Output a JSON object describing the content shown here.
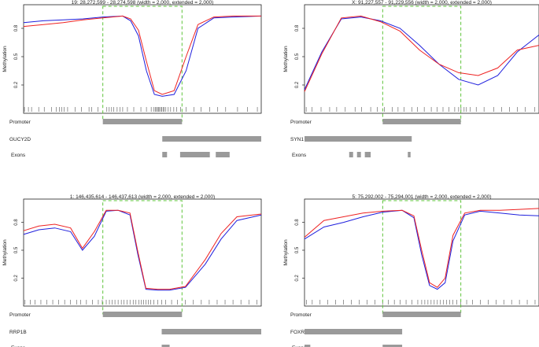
{
  "chart_data": [
    {
      "type": "line",
      "title": "19: 28,272,599 - 28,274,598 (width = 2,000, extended = 2,000)",
      "ylabel": "Methylation",
      "yticks": [
        "0.2",
        "0.5",
        "0.8"
      ],
      "ylim": [
        0,
        1
      ],
      "xlim": [
        28270599,
        28276598
      ],
      "region": [
        28272599,
        28274598
      ],
      "series": [
        {
          "color": "#1f1fdd",
          "x": [
            28270599,
            28271100,
            28271600,
            28272100,
            28272600,
            28273100,
            28273300,
            28273500,
            28273700,
            28273900,
            28274100,
            28274400,
            28274700,
            28275000,
            28275400,
            28275900,
            28276598
          ],
          "y": [
            0.86,
            0.88,
            0.89,
            0.9,
            0.92,
            0.93,
            0.88,
            0.72,
            0.35,
            0.1,
            0.08,
            0.1,
            0.35,
            0.8,
            0.91,
            0.92,
            0.93
          ]
        },
        {
          "color": "#ee2222",
          "x": [
            28270599,
            28271100,
            28271600,
            28272100,
            28272600,
            28273100,
            28273300,
            28273500,
            28273700,
            28273900,
            28274100,
            28274400,
            28274700,
            28275000,
            28275400,
            28275900,
            28276598
          ],
          "y": [
            0.82,
            0.84,
            0.86,
            0.89,
            0.91,
            0.93,
            0.9,
            0.78,
            0.45,
            0.14,
            0.1,
            0.14,
            0.5,
            0.84,
            0.92,
            0.93,
            0.93
          ]
        }
      ],
      "cpg_positions": [
        28270620,
        28270720,
        28270800,
        28270980,
        28271120,
        28271300,
        28271420,
        28271500,
        28271560,
        28271620,
        28271710,
        28271900,
        28272060,
        28272250,
        28272320,
        28272480,
        28272700,
        28272760,
        28272820,
        28272870,
        28272960,
        28273030,
        28273100,
        28273220,
        28273380,
        28273560,
        28273700,
        28273820,
        28273880,
        28273920,
        28273950,
        28273980,
        28274000,
        28274030,
        28274060,
        28274090,
        28274120,
        28274150,
        28274190,
        28274250,
        28274310,
        28274390,
        28274460,
        28274560,
        28274700,
        28274900,
        28275080,
        28275300,
        28275500,
        28275700,
        28276000,
        28276250,
        28276500
      ],
      "tracks": [
        {
          "label": "Promoter",
          "bars": [
            [
              28272599,
              28274598
            ]
          ]
        },
        {
          "label": "GUCY2D",
          "bars": [
            [
              28274100,
              28276598
            ]
          ]
        },
        {
          "label": "Exons",
          "bars": [
            [
              28274100,
              28274220
            ],
            [
              28274550,
              28275300
            ],
            [
              28275450,
              28275800
            ]
          ]
        }
      ]
    },
    {
      "type": "line",
      "title": "X: 91,227,557 - 91,229,556 (width = 2,000, extended = 2,000)",
      "ylabel": "Methylation",
      "yticks": [
        "0.2",
        "0.5",
        "0.8"
      ],
      "ylim": [
        0,
        1
      ],
      "xlim": [
        91225557,
        91231556
      ],
      "region": [
        91227557,
        91229556
      ],
      "series": [
        {
          "color": "#1f1fdd",
          "x": [
            91225557,
            91226000,
            91226500,
            91227000,
            91227500,
            91228000,
            91228500,
            91229000,
            91229500,
            91230000,
            91230500,
            91231000,
            91231556
          ],
          "y": [
            0.15,
            0.55,
            0.9,
            0.92,
            0.88,
            0.8,
            0.62,
            0.42,
            0.26,
            0.2,
            0.3,
            0.55,
            0.73
          ]
        },
        {
          "color": "#ee2222",
          "x": [
            91225557,
            91226000,
            91226500,
            91227000,
            91227500,
            91228000,
            91228500,
            91229000,
            91229500,
            91230000,
            91230500,
            91231000,
            91231556
          ],
          "y": [
            0.13,
            0.53,
            0.91,
            0.93,
            0.87,
            0.77,
            0.57,
            0.42,
            0.33,
            0.3,
            0.38,
            0.57,
            0.62
          ]
        }
      ],
      "cpg_positions": [
        91225600,
        91225750,
        91225980,
        91226200,
        91226380,
        91226600,
        91226850,
        91227020,
        91227250,
        91227420,
        91227600,
        91227800,
        91227950,
        91228100,
        91228300,
        91228450,
        91228620,
        91228800,
        91228950,
        91229100,
        91229250,
        91229400,
        91229500,
        91229560,
        91229640,
        91229700,
        91229800,
        91229950,
        91230150,
        91230400,
        91230600,
        91230800,
        91231000,
        91231200,
        91231450
      ],
      "tracks": [
        {
          "label": "Promoter",
          "bars": [
            [
              91227557,
              91229556
            ]
          ]
        },
        {
          "label": "SYN1",
          "bars": [
            [
              91225557,
              91228300
            ]
          ]
        },
        {
          "label": "Exons",
          "bars": [
            [
              91226700,
              91226800
            ],
            [
              91226900,
              91227000
            ],
            [
              91227100,
              91227250
            ],
            [
              91228200,
              91228270
            ]
          ]
        }
      ]
    },
    {
      "type": "line",
      "title": "1: 146,435,614 - 146,437,613 (width = 2,000, extended = 2,000)",
      "ylabel": "Methylation",
      "yticks": [
        "0.2",
        "0.5",
        "0.8"
      ],
      "ylim": [
        0,
        1
      ],
      "xlim": [
        146433614,
        146439613
      ],
      "region": [
        146435614,
        146437613
      ],
      "series": [
        {
          "color": "#1f1fdd",
          "x": [
            146433614,
            146434000,
            146434400,
            146434800,
            146435100,
            146435400,
            146435700,
            146436000,
            146436300,
            146436500,
            146436700,
            146437000,
            146437300,
            146437700,
            146438200,
            146438600,
            146439000,
            146439613
          ],
          "y": [
            0.67,
            0.72,
            0.74,
            0.7,
            0.5,
            0.65,
            0.92,
            0.93,
            0.88,
            0.45,
            0.08,
            0.07,
            0.07,
            0.1,
            0.35,
            0.62,
            0.82,
            0.88
          ]
        },
        {
          "color": "#ee2222",
          "x": [
            146433614,
            146434000,
            146434400,
            146434800,
            146435100,
            146435400,
            146435700,
            146436000,
            146436300,
            146436500,
            146436700,
            146437000,
            146437300,
            146437700,
            146438200,
            146438600,
            146439000,
            146439613
          ],
          "y": [
            0.71,
            0.76,
            0.78,
            0.74,
            0.52,
            0.7,
            0.93,
            0.93,
            0.9,
            0.48,
            0.09,
            0.08,
            0.08,
            0.11,
            0.4,
            0.68,
            0.86,
            0.89
          ]
        }
      ],
      "cpg_positions": [
        146433650,
        146433780,
        146433900,
        146434050,
        146434200,
        146434350,
        146434500,
        146434650,
        146434800,
        146434950,
        146435050,
        146435200,
        146435350,
        146435500,
        146435600,
        146435700,
        146435780,
        146435850,
        146435920,
        146436000,
        146436080,
        146436150,
        146436230,
        146436300,
        146436380,
        146436450,
        146436520,
        146436580,
        146436640,
        146436700,
        146436760,
        146436820,
        146436900,
        146437000,
        146437100,
        146437200,
        146437350,
        146437500,
        146437700,
        146437900,
        146438100,
        146438300,
        146438500,
        146438700,
        146438900,
        146439100,
        146439300,
        146439500
      ],
      "tracks": [
        {
          "label": "Promoter",
          "bars": [
            [
              146435614,
              146437613
            ]
          ]
        },
        {
          "label": "RRP1B",
          "bars": [
            [
              146437100,
              146439613
            ]
          ]
        },
        {
          "label": "Exons",
          "bars": [
            [
              146437100,
              146437300
            ]
          ]
        }
      ]
    },
    {
      "type": "line",
      "title": "5: 75,292,002 - 75,294,001 (width = 2,000, extended = 2,000)",
      "ylabel": "Methylation",
      "yticks": [
        "0.2",
        "0.5",
        "0.8"
      ],
      "ylim": [
        0,
        1
      ],
      "xlim": [
        75290002,
        75296001
      ],
      "region": [
        75292002,
        75294001
      ],
      "series": [
        {
          "color": "#1f1fdd",
          "x": [
            75290002,
            75290500,
            75291000,
            75291500,
            75292000,
            75292500,
            75292800,
            75293000,
            75293200,
            75293400,
            75293600,
            75293800,
            75294100,
            75294500,
            75295000,
            75295500,
            75296001
          ],
          "y": [
            0.62,
            0.75,
            0.8,
            0.86,
            0.91,
            0.93,
            0.85,
            0.45,
            0.12,
            0.08,
            0.15,
            0.6,
            0.88,
            0.92,
            0.9,
            0.88,
            0.87
          ]
        },
        {
          "color": "#ee2222",
          "x": [
            75290002,
            75290500,
            75291000,
            75291500,
            75292000,
            75292500,
            75292800,
            75293000,
            75293200,
            75293400,
            75293600,
            75293800,
            75294100,
            75294500,
            75295000,
            75295500,
            75296001
          ],
          "y": [
            0.64,
            0.82,
            0.86,
            0.9,
            0.92,
            0.93,
            0.87,
            0.5,
            0.15,
            0.1,
            0.2,
            0.66,
            0.9,
            0.93,
            0.93,
            0.94,
            0.95
          ]
        }
      ],
      "cpg_positions": [
        75290050,
        75290200,
        75290400,
        75290600,
        75290800,
        75291000,
        75291200,
        75291400,
        75291600,
        75291800,
        75292000,
        75292150,
        75292300,
        75292450,
        75292600,
        75292750,
        75292900,
        75293000,
        75293080,
        75293160,
        75293240,
        75293320,
        75293400,
        75293480,
        75293560,
        75293640,
        75293720,
        75293800,
        75293900,
        75294000,
        75294150,
        75294300,
        75294500,
        75294700,
        75294900,
        75295100,
        75295300,
        75295500,
        75295700,
        75295900
      ],
      "tracks": [
        {
          "label": "Promoter",
          "bars": [
            [
              75292002,
              75294001
            ]
          ]
        },
        {
          "label": "FOXRED2",
          "bars": [
            [
              75290002,
              75292500
            ]
          ]
        },
        {
          "label": "Exons",
          "bars": [
            [
              75290002,
              75290150
            ],
            [
              75292000,
              75292500
            ]
          ]
        }
      ]
    }
  ]
}
